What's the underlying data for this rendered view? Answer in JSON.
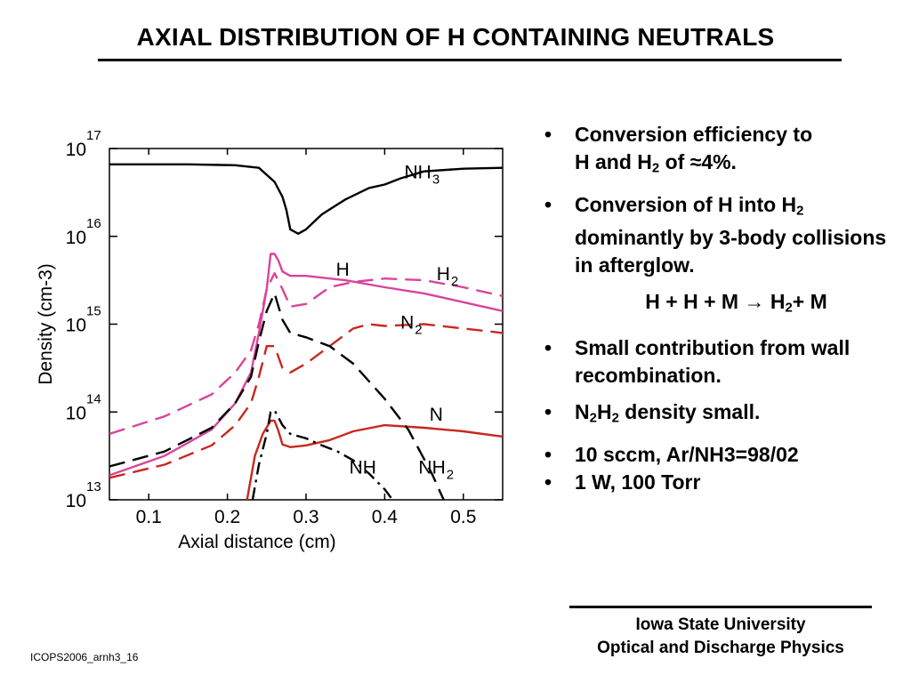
{
  "slide": {
    "title": "AXIAL DISTRIBUTION OF H CONTAINING NEUTRALS",
    "footer_line1": "Iowa State University",
    "footer_line2": "Optical and Discharge Physics",
    "code": "ICOPS2006_arnh3_16"
  },
  "bullets": {
    "b1_l1": "Conversion efficiency to",
    "b1_l2a": "H and H",
    "b1_l2sub": "2",
    "b1_l2b": " of ≈4%.",
    "b2_l1a": "Conversion of H into H",
    "b2_l1sub": "2",
    "b2_l2": "dominantly by 3-body collisions in afterglow.",
    "eq_a": "H + H + M → H",
    "eq_sub": "2",
    "eq_b": "+ M",
    "b3": "Small contribution from wall recombination.",
    "b4_a": "N",
    "b4_sub1": "2",
    "b4_b": "H",
    "b4_sub2": "2",
    "b4_c": " density small.",
    "b5": "10 sccm, Ar/NH3=98/02",
    "b6": "1 W, 100 Torr",
    "bullet_char": "•"
  },
  "chart_data": {
    "type": "line",
    "xlabel": "Axial distance (cm)",
    "ylabel": "Density (cm-3)",
    "xlim": [
      0.05,
      0.55
    ],
    "ylim_log10": [
      13,
      17
    ],
    "yscale": "log",
    "xticks": [
      "0.1",
      "0.2",
      "0.3",
      "0.4",
      "0.5"
    ],
    "xtick_values": [
      0.1,
      0.2,
      0.3,
      0.4,
      0.5
    ],
    "yticks": [
      {
        "base": "10",
        "exp": "13"
      },
      {
        "base": "10",
        "exp": "14"
      },
      {
        "base": "10",
        "exp": "15"
      },
      {
        "base": "10",
        "exp": "16"
      },
      {
        "base": "10",
        "exp": "17"
      }
    ],
    "ytick_values": [
      13,
      14,
      15,
      16,
      17
    ],
    "series": [
      {
        "name": "NH3",
        "label": "NH",
        "label_sub": "3",
        "color": "#000000",
        "dash": "solid",
        "label_at": [
          0.425,
          16.66
        ],
        "x": [
          0.05,
          0.15,
          0.21,
          0.24,
          0.26,
          0.27,
          0.275,
          0.28,
          0.29,
          0.3,
          0.32,
          0.35,
          0.38,
          0.4,
          0.42,
          0.45,
          0.5,
          0.55
        ],
        "log10y": [
          16.82,
          16.82,
          16.81,
          16.78,
          16.62,
          16.45,
          16.3,
          16.08,
          16.03,
          16.08,
          16.25,
          16.42,
          16.55,
          16.59,
          16.66,
          16.74,
          16.77,
          16.78
        ]
      },
      {
        "name": "H",
        "label": "H",
        "label_sub": "",
        "color": "#d9449c",
        "dash": "solid",
        "label_at": [
          0.338,
          15.55
        ],
        "x": [
          0.05,
          0.12,
          0.18,
          0.21,
          0.23,
          0.24,
          0.25,
          0.255,
          0.26,
          0.265,
          0.27,
          0.28,
          0.3,
          0.35,
          0.4,
          0.45,
          0.5,
          0.55
        ],
        "log10y": [
          13.28,
          13.5,
          13.8,
          14.1,
          14.45,
          14.9,
          15.4,
          15.8,
          15.8,
          15.72,
          15.6,
          15.55,
          15.55,
          15.5,
          15.42,
          15.35,
          15.25,
          15.15
        ]
      },
      {
        "name": "H2",
        "label": "H",
        "label_sub": "2",
        "color": "#d9449c",
        "dash": "dashed",
        "label_at": [
          0.466,
          15.5
        ],
        "x": [
          0.05,
          0.12,
          0.18,
          0.21,
          0.23,
          0.24,
          0.25,
          0.26,
          0.27,
          0.28,
          0.3,
          0.33,
          0.36,
          0.4,
          0.45,
          0.5,
          0.55
        ],
        "log10y": [
          13.75,
          13.95,
          14.2,
          14.45,
          14.7,
          15.0,
          15.4,
          15.58,
          15.4,
          15.2,
          15.23,
          15.42,
          15.48,
          15.52,
          15.5,
          15.42,
          15.32
        ]
      },
      {
        "name": "N2",
        "label": "N",
        "label_sub": "2",
        "color": "#c8281e",
        "dash": "dashed",
        "label_at": [
          0.42,
          14.95
        ],
        "x": [
          0.05,
          0.12,
          0.18,
          0.21,
          0.23,
          0.24,
          0.25,
          0.26,
          0.27,
          0.28,
          0.3,
          0.33,
          0.36,
          0.38,
          0.4,
          0.45,
          0.5,
          0.55
        ],
        "log10y": [
          13.25,
          13.4,
          13.62,
          13.85,
          14.1,
          14.4,
          14.75,
          14.75,
          14.5,
          14.45,
          14.55,
          14.75,
          14.95,
          15.0,
          14.98,
          15.0,
          14.95,
          14.9
        ]
      },
      {
        "name": "N",
        "label": "N",
        "label_sub": "",
        "color": "#c8281e",
        "dash": "solid",
        "label_at": [
          0.457,
          13.9
        ],
        "x": [
          0.225,
          0.235,
          0.245,
          0.255,
          0.26,
          0.265,
          0.27,
          0.28,
          0.3,
          0.33,
          0.36,
          0.4,
          0.45,
          0.5,
          0.55
        ],
        "log10y": [
          13.0,
          13.5,
          13.75,
          13.9,
          13.9,
          13.78,
          13.63,
          13.6,
          13.62,
          13.68,
          13.78,
          13.85,
          13.82,
          13.78,
          13.72
        ]
      },
      {
        "name": "NH2",
        "label": "NH",
        "label_sub": "2",
        "color": "#000000",
        "dash": "dashed",
        "label_at": [
          0.443,
          13.3
        ],
        "x": [
          0.05,
          0.12,
          0.18,
          0.21,
          0.23,
          0.24,
          0.25,
          0.26,
          0.27,
          0.28,
          0.3,
          0.33,
          0.36,
          0.4,
          0.43,
          0.46,
          0.475
        ],
        "log10y": [
          13.38,
          13.55,
          13.82,
          14.1,
          14.4,
          14.8,
          15.15,
          15.35,
          15.05,
          14.9,
          14.85,
          14.75,
          14.55,
          14.15,
          13.8,
          13.3,
          13.0
        ]
      },
      {
        "name": "NH",
        "label": "NH",
        "label_sub": "",
        "color": "#000000",
        "dash": "dashdot",
        "label_at": [
          0.355,
          13.3
        ],
        "x": [
          0.232,
          0.24,
          0.25,
          0.255,
          0.26,
          0.27,
          0.28,
          0.3,
          0.32,
          0.34,
          0.36,
          0.38,
          0.4,
          0.41
        ],
        "log10y": [
          13.0,
          13.4,
          13.75,
          14.0,
          14.02,
          13.85,
          13.75,
          13.7,
          13.62,
          13.55,
          13.45,
          13.3,
          13.12,
          13.0
        ]
      }
    ]
  }
}
